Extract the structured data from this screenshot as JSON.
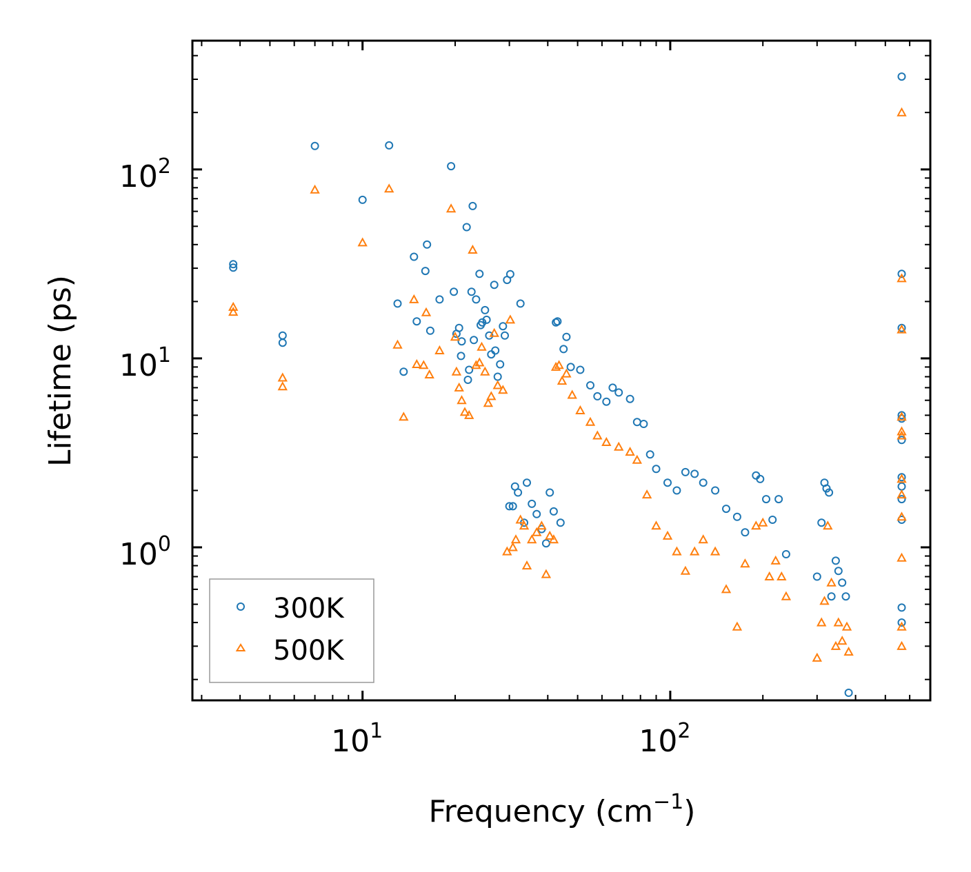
{
  "chart_data": {
    "type": "scatter",
    "title": "",
    "xlabel": "Frequency (cm",
    "xlabel_sup": "−1",
    "xlabel_close": ")",
    "ylabel": "Lifetime (ps)",
    "xscale": "log",
    "yscale": "log",
    "xlim": [
      2.8,
      700
    ],
    "ylim": [
      0.155,
      480
    ],
    "x_ticks": [
      {
        "value": 10,
        "base": "10",
        "exp": "1"
      },
      {
        "value": 100,
        "base": "10",
        "exp": "2"
      }
    ],
    "y_ticks": [
      {
        "value": 1,
        "base": "10",
        "exp": "0"
      },
      {
        "value": 10,
        "base": "10",
        "exp": "1"
      },
      {
        "value": 100,
        "base": "10",
        "exp": "2"
      }
    ],
    "legend_position": "lower-left",
    "series": [
      {
        "name": "300K",
        "marker": "circle",
        "color": "#1f77b4",
        "points": [
          [
            3.8,
            31.5
          ],
          [
            3.8,
            30.2
          ],
          [
            5.5,
            13.2
          ],
          [
            5.5,
            12.1
          ],
          [
            7,
            133
          ],
          [
            10,
            69
          ],
          [
            12.2,
            134
          ],
          [
            13,
            19.5
          ],
          [
            13.6,
            8.5
          ],
          [
            14.7,
            34.5
          ],
          [
            15,
            15.7
          ],
          [
            16,
            29
          ],
          [
            16.2,
            40
          ],
          [
            16.6,
            14
          ],
          [
            17.8,
            20.5
          ],
          [
            19.4,
            104
          ],
          [
            19.8,
            22.5
          ],
          [
            20.2,
            13.5
          ],
          [
            20.6,
            14.5
          ],
          [
            20.9,
            10.3
          ],
          [
            21,
            12.3
          ],
          [
            21.8,
            49.5
          ],
          [
            22,
            7.7
          ],
          [
            22.2,
            8.7
          ],
          [
            22.6,
            22.5
          ],
          [
            22.8,
            64
          ],
          [
            23,
            12.5
          ],
          [
            23.4,
            20.5
          ],
          [
            24,
            28
          ],
          [
            24.2,
            15
          ],
          [
            24.5,
            15.5
          ],
          [
            25,
            18
          ],
          [
            25.3,
            16
          ],
          [
            25.8,
            13.2
          ],
          [
            26.2,
            10.5
          ],
          [
            26.8,
            24.5
          ],
          [
            27,
            11
          ],
          [
            27.5,
            8
          ],
          [
            28,
            9.3
          ],
          [
            28.6,
            14.8
          ],
          [
            29,
            13.2
          ],
          [
            29.5,
            26
          ],
          [
            30.2,
            27.9
          ],
          [
            30,
            1.65
          ],
          [
            30.8,
            1.65
          ],
          [
            31.3,
            2.1
          ],
          [
            32,
            1.95
          ],
          [
            32.6,
            19.5
          ],
          [
            33.5,
            1.35
          ],
          [
            34.2,
            2.2
          ],
          [
            35.5,
            1.7
          ],
          [
            36.8,
            1.5
          ],
          [
            38.2,
            1.25
          ],
          [
            39.5,
            1.05
          ],
          [
            40.6,
            1.95
          ],
          [
            41.8,
            1.55
          ],
          [
            42.5,
            15.5
          ],
          [
            43,
            15.7
          ],
          [
            44,
            1.35
          ],
          [
            45,
            11.2
          ],
          [
            46,
            13
          ],
          [
            47.5,
            9
          ],
          [
            51,
            8.7
          ],
          [
            55,
            7.2
          ],
          [
            58,
            6.3
          ],
          [
            62,
            5.9
          ],
          [
            65,
            7
          ],
          [
            68,
            6.6
          ],
          [
            74,
            6.1
          ],
          [
            78,
            4.6
          ],
          [
            82,
            4.5
          ],
          [
            86,
            3.1
          ],
          [
            90,
            2.6
          ],
          [
            98,
            2.2
          ],
          [
            105,
            2
          ],
          [
            112,
            2.5
          ],
          [
            120,
            2.45
          ],
          [
            128,
            2.2
          ],
          [
            140,
            2
          ],
          [
            152,
            1.6
          ],
          [
            165,
            1.45
          ],
          [
            175,
            1.2
          ],
          [
            190,
            2.4
          ],
          [
            196,
            2.3
          ],
          [
            205,
            1.8
          ],
          [
            215,
            1.4
          ],
          [
            225,
            1.8
          ],
          [
            238,
            0.92
          ],
          [
            300,
            0.7
          ],
          [
            310,
            1.35
          ],
          [
            317,
            2.2
          ],
          [
            322,
            2.05
          ],
          [
            328,
            1.95
          ],
          [
            334,
            0.55
          ],
          [
            345,
            0.85
          ],
          [
            352,
            0.75
          ],
          [
            362,
            0.65
          ],
          [
            372,
            0.55
          ],
          [
            380,
            0.17
          ],
          [
            565,
            310
          ],
          [
            565,
            28
          ],
          [
            565,
            14.5
          ],
          [
            565,
            5
          ],
          [
            565,
            4.8
          ],
          [
            565,
            3.7
          ],
          [
            565,
            2.35
          ],
          [
            565,
            2.1
          ],
          [
            565,
            1.8
          ],
          [
            565,
            1.4
          ],
          [
            565,
            0.48
          ],
          [
            565,
            0.4
          ]
        ]
      },
      {
        "name": "500K",
        "marker": "triangle",
        "color": "#ff7f0e",
        "points": [
          [
            3.8,
            18.7
          ],
          [
            3.8,
            17.6
          ],
          [
            5.5,
            7.9
          ],
          [
            5.5,
            7.1
          ],
          [
            7,
            78
          ],
          [
            10,
            41
          ],
          [
            12.2,
            79
          ],
          [
            13,
            11.8
          ],
          [
            13.6,
            4.9
          ],
          [
            14.7,
            20.5
          ],
          [
            15,
            9.3
          ],
          [
            15.8,
            9.2
          ],
          [
            16.1,
            17.5
          ],
          [
            16.5,
            8.2
          ],
          [
            17.8,
            11
          ],
          [
            19.4,
            62
          ],
          [
            20,
            13
          ],
          [
            20.2,
            8.5
          ],
          [
            20.6,
            7
          ],
          [
            21,
            6
          ],
          [
            21.5,
            5.2
          ],
          [
            22.2,
            5
          ],
          [
            22.8,
            37.5
          ],
          [
            23.4,
            9.2
          ],
          [
            24,
            9.5
          ],
          [
            24.4,
            11.5
          ],
          [
            25,
            8.5
          ],
          [
            25.6,
            5.8
          ],
          [
            26.2,
            6.3
          ],
          [
            26.8,
            13.6
          ],
          [
            27.5,
            7.2
          ],
          [
            28.6,
            6.8
          ],
          [
            29.5,
            0.95
          ],
          [
            30.2,
            16
          ],
          [
            30.8,
            1
          ],
          [
            31.5,
            1.1
          ],
          [
            32.6,
            1.4
          ],
          [
            33.5,
            1.3
          ],
          [
            34.2,
            0.8
          ],
          [
            35.5,
            1.1
          ],
          [
            36.8,
            1.2
          ],
          [
            38.2,
            1.3
          ],
          [
            39.5,
            0.72
          ],
          [
            40.6,
            1.15
          ],
          [
            41.8,
            1.1
          ],
          [
            42.5,
            9
          ],
          [
            43.5,
            9.2
          ],
          [
            44.5,
            7.6
          ],
          [
            46,
            8.3
          ],
          [
            48,
            6.4
          ],
          [
            51,
            5.3
          ],
          [
            55,
            4.6
          ],
          [
            58,
            3.9
          ],
          [
            62,
            3.6
          ],
          [
            68,
            3.4
          ],
          [
            74,
            3.2
          ],
          [
            78,
            2.9
          ],
          [
            84,
            1.9
          ],
          [
            90,
            1.3
          ],
          [
            98,
            1.15
          ],
          [
            105,
            0.95
          ],
          [
            112,
            0.75
          ],
          [
            120,
            0.95
          ],
          [
            128,
            1.1
          ],
          [
            140,
            0.95
          ],
          [
            152,
            0.6
          ],
          [
            165,
            0.38
          ],
          [
            175,
            0.82
          ],
          [
            190,
            1.3
          ],
          [
            200,
            1.35
          ],
          [
            210,
            0.7
          ],
          [
            220,
            0.85
          ],
          [
            230,
            0.7
          ],
          [
            238,
            0.55
          ],
          [
            300,
            0.26
          ],
          [
            310,
            0.4
          ],
          [
            317,
            0.52
          ],
          [
            325,
            1.3
          ],
          [
            334,
            0.65
          ],
          [
            345,
            0.3
          ],
          [
            352,
            0.4
          ],
          [
            362,
            0.32
          ],
          [
            375,
            0.38
          ],
          [
            380,
            0.28
          ],
          [
            565,
            200
          ],
          [
            565,
            26.5
          ],
          [
            565,
            14.2
          ],
          [
            565,
            4.9
          ],
          [
            565,
            4.1
          ],
          [
            565,
            3.9
          ],
          [
            565,
            2.3
          ],
          [
            565,
            1.9
          ],
          [
            565,
            1.45
          ],
          [
            565,
            0.88
          ],
          [
            565,
            0.38
          ],
          [
            565,
            0.3
          ]
        ]
      }
    ]
  }
}
